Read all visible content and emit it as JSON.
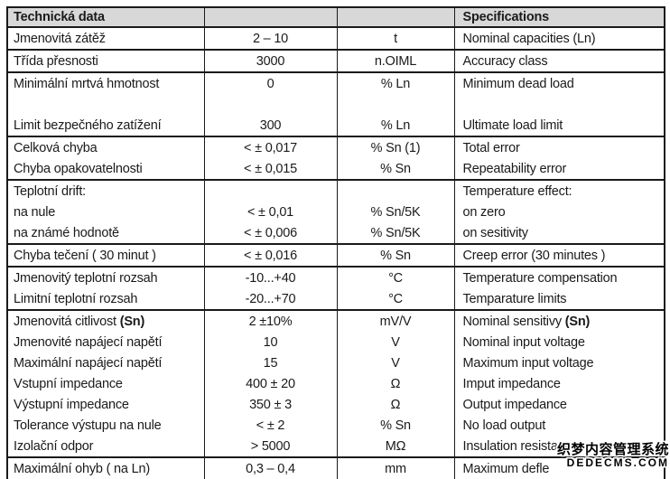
{
  "table": {
    "header": {
      "technical_data": "Technická data",
      "specifications": "Specifications"
    },
    "groups": [
      {
        "rows": [
          {
            "cz": "Jmenovitá zátěž",
            "value": "2 – 10",
            "unit": "t",
            "en": "Nominal capacities (Ln)"
          }
        ]
      },
      {
        "rows": [
          {
            "cz": "Třída přesnosti",
            "value": "3000",
            "unit": "n.OIML",
            "en": "Accuracy class"
          }
        ]
      },
      {
        "rows": [
          {
            "cz": "Minimální mrtvá hmotnost",
            "value": "0",
            "unit": "% Ln",
            "en": "Minimum dead load"
          },
          {
            "cz": "",
            "value": "",
            "unit": "",
            "en": ""
          },
          {
            "cz": "Limit bezpečného zatížení",
            "value": "300",
            "unit": "% Ln",
            "en": "Ultimate load limit"
          }
        ]
      },
      {
        "rows": [
          {
            "cz": "Celková chyba",
            "value": "< ± 0,017",
            "unit": "% Sn (1)",
            "en": "Total error"
          },
          {
            "cz": "Chyba opakovatelnosti",
            "value": "< ± 0,015",
            "unit": "% Sn",
            "en": "Repeatability error"
          }
        ]
      },
      {
        "rows": [
          {
            "cz": "Teplotní drift:",
            "value": "",
            "unit": "",
            "en": "Temperature effect:"
          },
          {
            "cz": "na nule",
            "value": "< ± 0,01",
            "unit": "% Sn/5K",
            "en": "on zero"
          },
          {
            "cz": "na známé hodnotě",
            "value": "< ± 0,006",
            "unit": "% Sn/5K",
            "en": "on sesitivity"
          }
        ]
      },
      {
        "rows": [
          {
            "cz": "Chyba tečení ( 30 minut )",
            "value": "< ± 0,016",
            "unit": "% Sn",
            "en": "Creep error (30 minutes )"
          }
        ]
      },
      {
        "rows": [
          {
            "cz": "Jmenovitý teplotní rozsah",
            "value": "-10...+40",
            "unit": "°C",
            "en": "Temperature compensation"
          },
          {
            "cz": "Limitní teplotní rozsah",
            "value": "-20...+70",
            "unit": "°C",
            "en": "Temparature limits"
          }
        ]
      },
      {
        "rows": [
          {
            "cz": "Jmenovitá citlivost ",
            "cz_bold": "(Sn)",
            "value": "2 ±10%",
            "unit": "mV/V",
            "en": "Nominal sensitivy ",
            "en_bold": "(Sn)"
          },
          {
            "cz": "Jmenovité napájecí napětí",
            "value": "10",
            "unit": "V",
            "en": "Nominal input voltage"
          },
          {
            "cz": "Maximální napájecí napětí",
            "value": "15",
            "unit": "V",
            "en": "Maximum input voltage"
          },
          {
            "cz": "Vstupní impedance",
            "value": "400 ± 20",
            "unit": "Ω",
            "en": "Imput impedance"
          },
          {
            "cz": "Výstupní impedance",
            "value": "350 ± 3",
            "unit": "Ω",
            "en": "Output impedance"
          },
          {
            "cz": "Tolerance výstupu na nule",
            "value": "< ± 2",
            "unit": "% Sn",
            "en": "No load output"
          },
          {
            "cz": "Izolační odpor",
            "value": "> 5000",
            "unit": "MΩ",
            "en": "Insulation resistance"
          }
        ]
      },
      {
        "rows": [
          {
            "cz": "Maximální ohyb ( na Ln)",
            "value": "0,3 – 0,4",
            "unit": "mm",
            "en": "Maximum defle"
          }
        ]
      }
    ]
  },
  "watermark": {
    "line1": "织梦内容管理系统",
    "line2": "DEDECMS.COM"
  },
  "colors": {
    "header_bg": "#d8d8d8",
    "border": "#1a1a1a",
    "text": "#1a1a1a"
  }
}
